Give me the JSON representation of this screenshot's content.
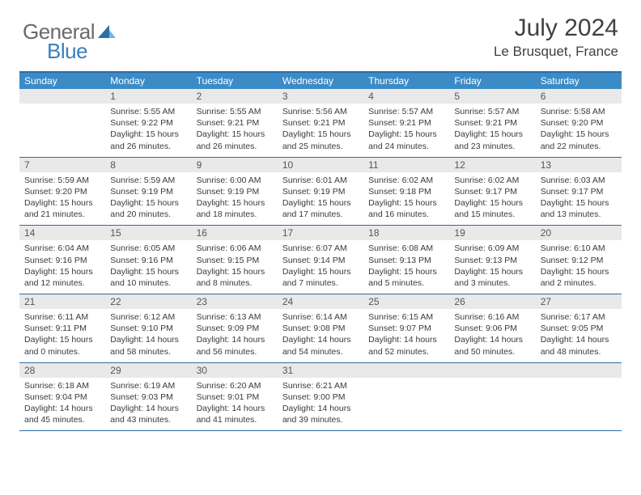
{
  "logo": {
    "text1": "General",
    "text2": "Blue"
  },
  "title": "July 2024",
  "location": "Le Brusquet, France",
  "colors": {
    "header_bg": "#3b8bc6",
    "border": "#2d6da8",
    "daynum_bg": "#e9e9e9",
    "text": "#3a3a3a",
    "logo_gray": "#6a6a6a",
    "logo_blue": "#3b7fbf"
  },
  "dow": [
    "Sunday",
    "Monday",
    "Tuesday",
    "Wednesday",
    "Thursday",
    "Friday",
    "Saturday"
  ],
  "weeks": [
    [
      {
        "n": "",
        "sr": "",
        "ss": "",
        "d1": "",
        "d2": ""
      },
      {
        "n": "1",
        "sr": "Sunrise: 5:55 AM",
        "ss": "Sunset: 9:22 PM",
        "d1": "Daylight: 15 hours",
        "d2": "and 26 minutes."
      },
      {
        "n": "2",
        "sr": "Sunrise: 5:55 AM",
        "ss": "Sunset: 9:21 PM",
        "d1": "Daylight: 15 hours",
        "d2": "and 26 minutes."
      },
      {
        "n": "3",
        "sr": "Sunrise: 5:56 AM",
        "ss": "Sunset: 9:21 PM",
        "d1": "Daylight: 15 hours",
        "d2": "and 25 minutes."
      },
      {
        "n": "4",
        "sr": "Sunrise: 5:57 AM",
        "ss": "Sunset: 9:21 PM",
        "d1": "Daylight: 15 hours",
        "d2": "and 24 minutes."
      },
      {
        "n": "5",
        "sr": "Sunrise: 5:57 AM",
        "ss": "Sunset: 9:21 PM",
        "d1": "Daylight: 15 hours",
        "d2": "and 23 minutes."
      },
      {
        "n": "6",
        "sr": "Sunrise: 5:58 AM",
        "ss": "Sunset: 9:20 PM",
        "d1": "Daylight: 15 hours",
        "d2": "and 22 minutes."
      }
    ],
    [
      {
        "n": "7",
        "sr": "Sunrise: 5:59 AM",
        "ss": "Sunset: 9:20 PM",
        "d1": "Daylight: 15 hours",
        "d2": "and 21 minutes."
      },
      {
        "n": "8",
        "sr": "Sunrise: 5:59 AM",
        "ss": "Sunset: 9:19 PM",
        "d1": "Daylight: 15 hours",
        "d2": "and 20 minutes."
      },
      {
        "n": "9",
        "sr": "Sunrise: 6:00 AM",
        "ss": "Sunset: 9:19 PM",
        "d1": "Daylight: 15 hours",
        "d2": "and 18 minutes."
      },
      {
        "n": "10",
        "sr": "Sunrise: 6:01 AM",
        "ss": "Sunset: 9:19 PM",
        "d1": "Daylight: 15 hours",
        "d2": "and 17 minutes."
      },
      {
        "n": "11",
        "sr": "Sunrise: 6:02 AM",
        "ss": "Sunset: 9:18 PM",
        "d1": "Daylight: 15 hours",
        "d2": "and 16 minutes."
      },
      {
        "n": "12",
        "sr": "Sunrise: 6:02 AM",
        "ss": "Sunset: 9:17 PM",
        "d1": "Daylight: 15 hours",
        "d2": "and 15 minutes."
      },
      {
        "n": "13",
        "sr": "Sunrise: 6:03 AM",
        "ss": "Sunset: 9:17 PM",
        "d1": "Daylight: 15 hours",
        "d2": "and 13 minutes."
      }
    ],
    [
      {
        "n": "14",
        "sr": "Sunrise: 6:04 AM",
        "ss": "Sunset: 9:16 PM",
        "d1": "Daylight: 15 hours",
        "d2": "and 12 minutes."
      },
      {
        "n": "15",
        "sr": "Sunrise: 6:05 AM",
        "ss": "Sunset: 9:16 PM",
        "d1": "Daylight: 15 hours",
        "d2": "and 10 minutes."
      },
      {
        "n": "16",
        "sr": "Sunrise: 6:06 AM",
        "ss": "Sunset: 9:15 PM",
        "d1": "Daylight: 15 hours",
        "d2": "and 8 minutes."
      },
      {
        "n": "17",
        "sr": "Sunrise: 6:07 AM",
        "ss": "Sunset: 9:14 PM",
        "d1": "Daylight: 15 hours",
        "d2": "and 7 minutes."
      },
      {
        "n": "18",
        "sr": "Sunrise: 6:08 AM",
        "ss": "Sunset: 9:13 PM",
        "d1": "Daylight: 15 hours",
        "d2": "and 5 minutes."
      },
      {
        "n": "19",
        "sr": "Sunrise: 6:09 AM",
        "ss": "Sunset: 9:13 PM",
        "d1": "Daylight: 15 hours",
        "d2": "and 3 minutes."
      },
      {
        "n": "20",
        "sr": "Sunrise: 6:10 AM",
        "ss": "Sunset: 9:12 PM",
        "d1": "Daylight: 15 hours",
        "d2": "and 2 minutes."
      }
    ],
    [
      {
        "n": "21",
        "sr": "Sunrise: 6:11 AM",
        "ss": "Sunset: 9:11 PM",
        "d1": "Daylight: 15 hours",
        "d2": "and 0 minutes."
      },
      {
        "n": "22",
        "sr": "Sunrise: 6:12 AM",
        "ss": "Sunset: 9:10 PM",
        "d1": "Daylight: 14 hours",
        "d2": "and 58 minutes."
      },
      {
        "n": "23",
        "sr": "Sunrise: 6:13 AM",
        "ss": "Sunset: 9:09 PM",
        "d1": "Daylight: 14 hours",
        "d2": "and 56 minutes."
      },
      {
        "n": "24",
        "sr": "Sunrise: 6:14 AM",
        "ss": "Sunset: 9:08 PM",
        "d1": "Daylight: 14 hours",
        "d2": "and 54 minutes."
      },
      {
        "n": "25",
        "sr": "Sunrise: 6:15 AM",
        "ss": "Sunset: 9:07 PM",
        "d1": "Daylight: 14 hours",
        "d2": "and 52 minutes."
      },
      {
        "n": "26",
        "sr": "Sunrise: 6:16 AM",
        "ss": "Sunset: 9:06 PM",
        "d1": "Daylight: 14 hours",
        "d2": "and 50 minutes."
      },
      {
        "n": "27",
        "sr": "Sunrise: 6:17 AM",
        "ss": "Sunset: 9:05 PM",
        "d1": "Daylight: 14 hours",
        "d2": "and 48 minutes."
      }
    ],
    [
      {
        "n": "28",
        "sr": "Sunrise: 6:18 AM",
        "ss": "Sunset: 9:04 PM",
        "d1": "Daylight: 14 hours",
        "d2": "and 45 minutes."
      },
      {
        "n": "29",
        "sr": "Sunrise: 6:19 AM",
        "ss": "Sunset: 9:03 PM",
        "d1": "Daylight: 14 hours",
        "d2": "and 43 minutes."
      },
      {
        "n": "30",
        "sr": "Sunrise: 6:20 AM",
        "ss": "Sunset: 9:01 PM",
        "d1": "Daylight: 14 hours",
        "d2": "and 41 minutes."
      },
      {
        "n": "31",
        "sr": "Sunrise: 6:21 AM",
        "ss": "Sunset: 9:00 PM",
        "d1": "Daylight: 14 hours",
        "d2": "and 39 minutes."
      },
      {
        "n": "",
        "sr": "",
        "ss": "",
        "d1": "",
        "d2": ""
      },
      {
        "n": "",
        "sr": "",
        "ss": "",
        "d1": "",
        "d2": ""
      },
      {
        "n": "",
        "sr": "",
        "ss": "",
        "d1": "",
        "d2": ""
      }
    ]
  ]
}
